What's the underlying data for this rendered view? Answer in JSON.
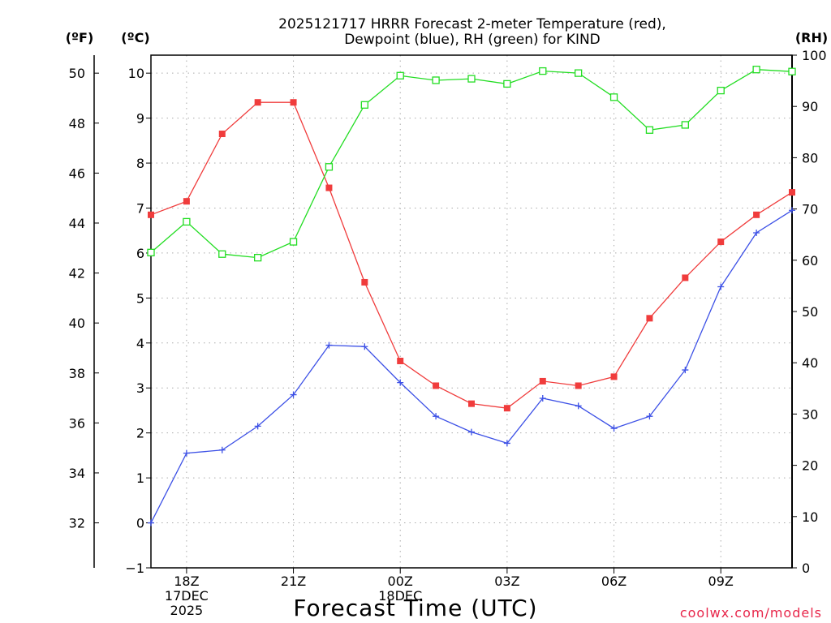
{
  "chart_data": {
    "type": "line",
    "title": [
      "2025121717 HRRR Forecast 2-meter Temperature (red),",
      "Dewpoint (blue), RH (green) for KIND"
    ],
    "xlabel": "Forecast Time (UTC)",
    "x_tick_labels": [
      {
        "hour": 1,
        "lines": [
          "18Z",
          "17DEC",
          "2025"
        ]
      },
      {
        "hour": 4,
        "lines": [
          "21Z"
        ]
      },
      {
        "hour": 7,
        "lines": [
          "00Z",
          "18DEC"
        ]
      },
      {
        "hour": 10,
        "lines": [
          "03Z"
        ]
      },
      {
        "hour": 13,
        "lines": [
          "06Z"
        ]
      },
      {
        "hour": 16,
        "lines": [
          "09Z"
        ]
      }
    ],
    "xlim": [
      0,
      18
    ],
    "celsius_axis": {
      "label": "(ºC)",
      "ylim": [
        -1,
        10.4
      ],
      "ticks": [
        -1,
        0,
        1,
        2,
        3,
        4,
        5,
        6,
        7,
        8,
        9,
        10
      ]
    },
    "fahrenheit_axis": {
      "label": "(ºF)",
      "ticks": [
        32,
        34,
        36,
        38,
        40,
        42,
        44,
        46,
        48,
        50
      ]
    },
    "rh_axis": {
      "label": "(RH)",
      "ylim": [
        0,
        100
      ],
      "ticks": [
        0,
        10,
        20,
        30,
        40,
        50,
        60,
        70,
        80,
        90,
        100
      ]
    },
    "grid": true,
    "series": [
      {
        "name": "Temperature",
        "units": "C",
        "axis": "celsius",
        "color": "#f03c3c",
        "marker": "filled-square",
        "x": [
          0,
          1,
          2,
          3,
          4,
          5,
          6,
          7,
          8,
          9,
          10,
          11,
          12,
          13,
          14,
          15,
          16,
          17,
          18
        ],
        "values": [
          6.85,
          7.15,
          8.65,
          9.35,
          9.35,
          7.45,
          5.35,
          3.6,
          3.05,
          2.65,
          2.55,
          3.15,
          3.05,
          3.25,
          4.55,
          5.45,
          6.25,
          6.85,
          7.35
        ]
      },
      {
        "name": "Dewpoint",
        "units": "C",
        "axis": "celsius",
        "color": "#3c50e6",
        "marker": "plus",
        "x": [
          0,
          1,
          2,
          3,
          4,
          5,
          6,
          7,
          8,
          9,
          10,
          11,
          12,
          13,
          14,
          15,
          16,
          17,
          18
        ],
        "values": [
          0.0,
          1.55,
          1.62,
          2.15,
          2.85,
          3.95,
          3.92,
          3.12,
          2.37,
          2.02,
          1.77,
          2.77,
          2.6,
          2.1,
          2.37,
          3.4,
          5.25,
          6.45,
          6.95
        ]
      },
      {
        "name": "RH",
        "units": "%",
        "axis": "rh",
        "color": "#22dd22",
        "marker": "open-square",
        "x": [
          0,
          1,
          2,
          3,
          4,
          5,
          6,
          7,
          8,
          9,
          10,
          11,
          12,
          13,
          14,
          15,
          16,
          17,
          18
        ],
        "values": [
          61.5,
          67.5,
          61.2,
          60.5,
          63.6,
          78.2,
          90.3,
          96.0,
          95.1,
          95.4,
          94.4,
          96.9,
          96.5,
          91.8,
          85.4,
          86.4,
          93.1,
          97.2,
          96.8
        ]
      }
    ]
  },
  "credit": "coolwx.com/models"
}
